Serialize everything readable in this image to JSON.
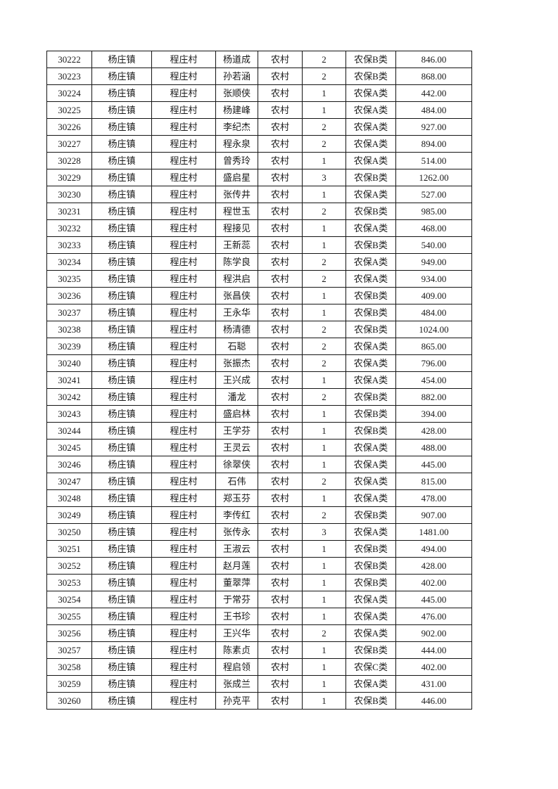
{
  "table": {
    "rows": [
      [
        "30222",
        "杨庄镇",
        "程庄村",
        "杨道成",
        "农村",
        "2",
        "农保B类",
        "846.00"
      ],
      [
        "30223",
        "杨庄镇",
        "程庄村",
        "孙若涵",
        "农村",
        "2",
        "农保B类",
        "868.00"
      ],
      [
        "30224",
        "杨庄镇",
        "程庄村",
        "张顺侠",
        "农村",
        "1",
        "农保A类",
        "442.00"
      ],
      [
        "30225",
        "杨庄镇",
        "程庄村",
        "杨建峰",
        "农村",
        "1",
        "农保A类",
        "484.00"
      ],
      [
        "30226",
        "杨庄镇",
        "程庄村",
        "李纪杰",
        "农村",
        "2",
        "农保A类",
        "927.00"
      ],
      [
        "30227",
        "杨庄镇",
        "程庄村",
        "程永泉",
        "农村",
        "2",
        "农保A类",
        "894.00"
      ],
      [
        "30228",
        "杨庄镇",
        "程庄村",
        "曾秀玲",
        "农村",
        "1",
        "农保A类",
        "514.00"
      ],
      [
        "30229",
        "杨庄镇",
        "程庄村",
        "盛启星",
        "农村",
        "3",
        "农保B类",
        "1262.00"
      ],
      [
        "30230",
        "杨庄镇",
        "程庄村",
        "张传井",
        "农村",
        "1",
        "农保A类",
        "527.00"
      ],
      [
        "30231",
        "杨庄镇",
        "程庄村",
        "程世玉",
        "农村",
        "2",
        "农保B类",
        "985.00"
      ],
      [
        "30232",
        "杨庄镇",
        "程庄村",
        "程接见",
        "农村",
        "1",
        "农保A类",
        "468.00"
      ],
      [
        "30233",
        "杨庄镇",
        "程庄村",
        "王新蕊",
        "农村",
        "1",
        "农保B类",
        "540.00"
      ],
      [
        "30234",
        "杨庄镇",
        "程庄村",
        "陈学良",
        "农村",
        "2",
        "农保A类",
        "949.00"
      ],
      [
        "30235",
        "杨庄镇",
        "程庄村",
        "程洪启",
        "农村",
        "2",
        "农保A类",
        "934.00"
      ],
      [
        "30236",
        "杨庄镇",
        "程庄村",
        "张昌侠",
        "农村",
        "1",
        "农保B类",
        "409.00"
      ],
      [
        "30237",
        "杨庄镇",
        "程庄村",
        "王永华",
        "农村",
        "1",
        "农保B类",
        "484.00"
      ],
      [
        "30238",
        "杨庄镇",
        "程庄村",
        "杨清德",
        "农村",
        "2",
        "农保B类",
        "1024.00"
      ],
      [
        "30239",
        "杨庄镇",
        "程庄村",
        "石聪",
        "农村",
        "2",
        "农保A类",
        "865.00"
      ],
      [
        "30240",
        "杨庄镇",
        "程庄村",
        "张振杰",
        "农村",
        "2",
        "农保A类",
        "796.00"
      ],
      [
        "30241",
        "杨庄镇",
        "程庄村",
        "王兴成",
        "农村",
        "1",
        "农保A类",
        "454.00"
      ],
      [
        "30242",
        "杨庄镇",
        "程庄村",
        "潘龙",
        "农村",
        "2",
        "农保B类",
        "882.00"
      ],
      [
        "30243",
        "杨庄镇",
        "程庄村",
        "盛启林",
        "农村",
        "1",
        "农保B类",
        "394.00"
      ],
      [
        "30244",
        "杨庄镇",
        "程庄村",
        "王学芬",
        "农村",
        "1",
        "农保B类",
        "428.00"
      ],
      [
        "30245",
        "杨庄镇",
        "程庄村",
        "王灵云",
        "农村",
        "1",
        "农保A类",
        "488.00"
      ],
      [
        "30246",
        "杨庄镇",
        "程庄村",
        "徐翠侠",
        "农村",
        "1",
        "农保A类",
        "445.00"
      ],
      [
        "30247",
        "杨庄镇",
        "程庄村",
        "石伟",
        "农村",
        "2",
        "农保A类",
        "815.00"
      ],
      [
        "30248",
        "杨庄镇",
        "程庄村",
        "郑玉芬",
        "农村",
        "1",
        "农保A类",
        "478.00"
      ],
      [
        "30249",
        "杨庄镇",
        "程庄村",
        "李传红",
        "农村",
        "2",
        "农保B类",
        "907.00"
      ],
      [
        "30250",
        "杨庄镇",
        "程庄村",
        "张传永",
        "农村",
        "3",
        "农保A类",
        "1481.00"
      ],
      [
        "30251",
        "杨庄镇",
        "程庄村",
        "王淑云",
        "农村",
        "1",
        "农保B类",
        "494.00"
      ],
      [
        "30252",
        "杨庄镇",
        "程庄村",
        "赵月莲",
        "农村",
        "1",
        "农保B类",
        "428.00"
      ],
      [
        "30253",
        "杨庄镇",
        "程庄村",
        "董翠萍",
        "农村",
        "1",
        "农保B类",
        "402.00"
      ],
      [
        "30254",
        "杨庄镇",
        "程庄村",
        "于常芬",
        "农村",
        "1",
        "农保A类",
        "445.00"
      ],
      [
        "30255",
        "杨庄镇",
        "程庄村",
        "王书珍",
        "农村",
        "1",
        "农保A类",
        "476.00"
      ],
      [
        "30256",
        "杨庄镇",
        "程庄村",
        "王兴华",
        "农村",
        "2",
        "农保A类",
        "902.00"
      ],
      [
        "30257",
        "杨庄镇",
        "程庄村",
        "陈素贞",
        "农村",
        "1",
        "农保B类",
        "444.00"
      ],
      [
        "30258",
        "杨庄镇",
        "程庄村",
        "程启领",
        "农村",
        "1",
        "农保C类",
        "402.00"
      ],
      [
        "30259",
        "杨庄镇",
        "程庄村",
        "张成兰",
        "农村",
        "1",
        "农保A类",
        "431.00"
      ],
      [
        "30260",
        "杨庄镇",
        "程庄村",
        "孙克平",
        "农村",
        "1",
        "农保B类",
        "446.00"
      ]
    ]
  }
}
